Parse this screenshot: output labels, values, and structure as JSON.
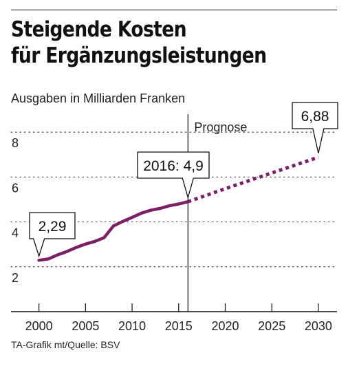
{
  "title": {
    "line1": "Steigende Kosten",
    "line2": "für Ergänzungsleistungen"
  },
  "subtitle": "Ausgaben in Milliarden Franken",
  "source": "TA-Grafik mt/Quelle: BSV",
  "chart_data": {
    "type": "line",
    "title": "Steigende Kosten für Ergänzungsleistungen",
    "ylabel": "Ausgaben in Milliarden Franken",
    "xlabel": "",
    "xlim": [
      1997,
      2032
    ],
    "ylim": [
      0,
      8.8
    ],
    "x_ticks": [
      2000,
      2005,
      2010,
      2015,
      2020,
      2025,
      2030
    ],
    "y_ticks": [
      2,
      4,
      6,
      8
    ],
    "grid": "dotted horizontal",
    "color": "#7b1f66",
    "series": [
      {
        "style": "solid",
        "x": [
          2000,
          2001,
          2002,
          2003,
          2004,
          2005,
          2006,
          2007,
          2008,
          2009,
          2010,
          2011,
          2012,
          2013,
          2014,
          2015,
          2016
        ],
        "y": [
          2.29,
          2.35,
          2.53,
          2.68,
          2.86,
          3.01,
          3.13,
          3.3,
          3.82,
          4.02,
          4.2,
          4.39,
          4.52,
          4.6,
          4.72,
          4.8,
          4.9
        ]
      },
      {
        "style": "dashed",
        "x": [
          2016,
          2020,
          2025,
          2030
        ],
        "y": [
          4.9,
          5.48,
          6.18,
          6.88
        ]
      }
    ],
    "forecast": {
      "x": 2016,
      "label": "Prognose"
    },
    "annotations": [
      {
        "x": 2000,
        "y": 2.29,
        "text": "2,29"
      },
      {
        "x": 2016,
        "y": 4.9,
        "text": "2016: 4,9"
      },
      {
        "x": 2030,
        "y": 6.88,
        "text": "6,88"
      }
    ]
  }
}
